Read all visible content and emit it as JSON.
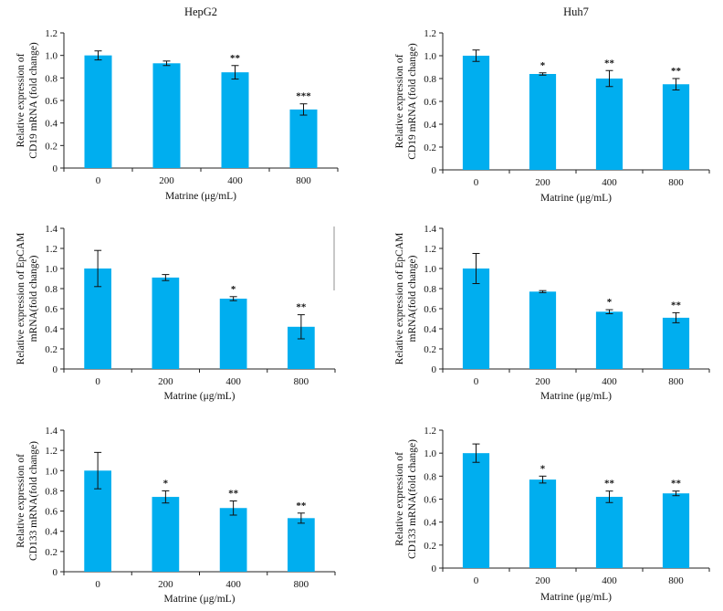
{
  "colors": {
    "bar": "#00AEEF",
    "axis": "#222222"
  },
  "chart_data": [
    {
      "type": "bar",
      "title": "HepG2",
      "ylabel": [
        "Relative expression of",
        "CD19 mRNA (fold change)"
      ],
      "xlabel": "Matrine (μg/mL)",
      "categories": [
        "0",
        "200",
        "400",
        "800"
      ],
      "values": [
        1.0,
        0.93,
        0.85,
        0.52
      ],
      "errors": [
        0.04,
        0.02,
        0.06,
        0.05
      ],
      "significance": [
        "",
        "",
        "**",
        "***"
      ],
      "ylim": [
        0,
        1.2
      ],
      "yticks": [
        "0",
        "0.2",
        "0.4",
        "0.6",
        "0.8",
        "1.0",
        "1.2"
      ]
    },
    {
      "type": "bar",
      "title": "Huh7",
      "ylabel": [
        "Relative expression of",
        "CD19 mRNA (fold change)"
      ],
      "xlabel": "Matrine (μg/mL)",
      "categories": [
        "0",
        "200",
        "400",
        "800"
      ],
      "values": [
        1.0,
        0.84,
        0.8,
        0.75
      ],
      "errors": [
        0.05,
        0.01,
        0.07,
        0.05
      ],
      "significance": [
        "",
        "*",
        "**",
        "**"
      ],
      "ylim": [
        0,
        1.2
      ],
      "yticks": [
        "0",
        "0.2",
        "0.4",
        "0.6",
        "0.8",
        "1.0",
        "1.2"
      ]
    },
    {
      "type": "bar",
      "title": "",
      "ylabel": [
        "Relative expression of EpCAM",
        "mRNA(fold change)"
      ],
      "xlabel": "Matrine (μg/mL)",
      "categories": [
        "0",
        "200",
        "400",
        "800"
      ],
      "values": [
        1.0,
        0.91,
        0.7,
        0.42
      ],
      "errors": [
        0.18,
        0.03,
        0.02,
        0.12
      ],
      "significance": [
        "",
        "",
        "*",
        "**"
      ],
      "ylim": [
        0,
        1.4
      ],
      "yticks": [
        "0",
        "0.2",
        "0.4",
        "0.6",
        "0.8",
        "1.0",
        "1.2",
        "1.4"
      ]
    },
    {
      "type": "bar",
      "title": "",
      "ylabel": [
        "Relative expression of EpCAM",
        "mRNA(fold change)"
      ],
      "xlabel": "Matrine (μg/mL)",
      "categories": [
        "0",
        "200",
        "400",
        "800"
      ],
      "values": [
        1.0,
        0.77,
        0.57,
        0.51
      ],
      "errors": [
        0.15,
        0.01,
        0.02,
        0.05
      ],
      "significance": [
        "",
        "",
        "*",
        "**"
      ],
      "ylim": [
        0,
        1.4
      ],
      "yticks": [
        "0",
        "0.2",
        "0.4",
        "0.6",
        "0.8",
        "1.0",
        "1.2",
        "1.4"
      ]
    },
    {
      "type": "bar",
      "title": "",
      "ylabel": [
        "Relative expression of",
        "CD133 mRNA(fold change)"
      ],
      "xlabel": "Matrine (μg/mL)",
      "categories": [
        "0",
        "200",
        "400",
        "800"
      ],
      "values": [
        1.0,
        0.74,
        0.63,
        0.53
      ],
      "errors": [
        0.18,
        0.06,
        0.07,
        0.05
      ],
      "significance": [
        "",
        "*",
        "**",
        "**"
      ],
      "ylim": [
        0,
        1.4
      ],
      "yticks": [
        "0",
        "0.2",
        "0.4",
        "0.6",
        "0.8",
        "1.0",
        "1.2",
        "1.4"
      ]
    },
    {
      "type": "bar",
      "title": "",
      "ylabel": [
        "Relative expression of",
        "CD133 mRNA(fold change)"
      ],
      "xlabel": "Matrine (μg/mL)",
      "categories": [
        "0",
        "200",
        "400",
        "800"
      ],
      "values": [
        1.0,
        0.77,
        0.62,
        0.65
      ],
      "errors": [
        0.08,
        0.03,
        0.05,
        0.02
      ],
      "significance": [
        "",
        "*",
        "**",
        "**"
      ],
      "ylim": [
        0,
        1.2
      ],
      "yticks": [
        "0",
        "0.2",
        "0.4",
        "0.6",
        "0.8",
        "1.0",
        "1.2"
      ]
    }
  ]
}
